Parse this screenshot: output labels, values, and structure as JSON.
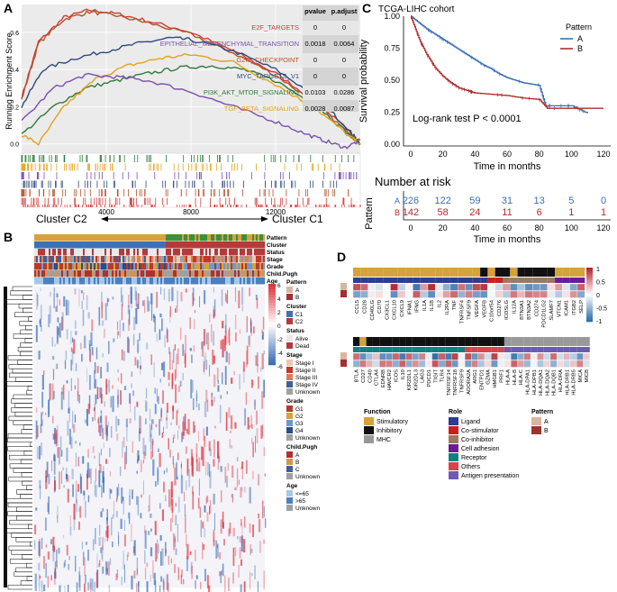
{
  "panels": {
    "a": "A",
    "b": "B",
    "c": "C",
    "d": "D"
  },
  "colors": {
    "e2f": "#d23b3b",
    "emt": "#7b4fb0",
    "g2m": "#b5532a",
    "myc": "#2e4a7a",
    "pi3k": "#2f7a3a",
    "tgfb": "#e3a21a",
    "kmA": "#3a6fb5",
    "kmB": "#b02a2a",
    "heatHigh": "#e0323c",
    "heatLow": "#3a6db5",
    "stim": "#d6a23a",
    "inhib": "#111111",
    "mhc": "#999999"
  },
  "panelA": {
    "ylabel": "Running Enrichment Score",
    "ymin": -0.05,
    "ymax": 0.75,
    "yticks": [
      "0.6",
      "0.4",
      "0.2",
      "0.0"
    ],
    "xticks": [
      "4000",
      "8000",
      "12000"
    ],
    "xmax": 16000,
    "table": {
      "headers": [
        "pvalue",
        "p.adjust"
      ],
      "rows": [
        {
          "name": "E2F_TARGETS",
          "pvalue": "0",
          "padj": "0",
          "color": "e2f"
        },
        {
          "name": "EPITHELIAL_MESENCHYMAL_TRANSITION",
          "pvalue": "0.0018",
          "padj": "0.0064",
          "color": "emt"
        },
        {
          "name": "G2M_CHECKPOINT",
          "pvalue": "0",
          "padj": "0",
          "color": "g2m"
        },
        {
          "name": "MYC_TARGETS_V1",
          "pvalue": "0",
          "padj": "0",
          "color": "myc"
        },
        {
          "name": "PI3K_AKT_MTOR_SIGNALING",
          "pvalue": "0.0103",
          "padj": "0.0286",
          "color": "pi3k"
        },
        {
          "name": "TGF_BETA_SIGNALING",
          "pvalue": "0.0028",
          "padj": "0.0087",
          "color": "tgfb"
        }
      ]
    },
    "series": [
      {
        "key": "e2f",
        "pts": [
          [
            0,
            0.25
          ],
          [
            800,
            0.55
          ],
          [
            2000,
            0.68
          ],
          [
            3200,
            0.72
          ],
          [
            4500,
            0.7
          ],
          [
            6000,
            0.66
          ],
          [
            8000,
            0.6
          ],
          [
            10000,
            0.5
          ],
          [
            12000,
            0.38
          ],
          [
            14000,
            0.22
          ],
          [
            15500,
            0.06
          ],
          [
            16000,
            0.0
          ]
        ]
      },
      {
        "key": "g2m",
        "pts": [
          [
            0,
            0.24
          ],
          [
            800,
            0.54
          ],
          [
            2000,
            0.67
          ],
          [
            3200,
            0.71
          ],
          [
            4500,
            0.69
          ],
          [
            6000,
            0.65
          ],
          [
            8000,
            0.59
          ],
          [
            10000,
            0.49
          ],
          [
            12000,
            0.37
          ],
          [
            14000,
            0.21
          ],
          [
            15500,
            0.05
          ],
          [
            16000,
            0.0
          ]
        ]
      },
      {
        "key": "myc",
        "pts": [
          [
            0,
            0.2
          ],
          [
            1000,
            0.4
          ],
          [
            2500,
            0.46
          ],
          [
            4000,
            0.5
          ],
          [
            5500,
            0.54
          ],
          [
            7000,
            0.57
          ],
          [
            8000,
            0.56
          ],
          [
            10000,
            0.5
          ],
          [
            12000,
            0.4
          ],
          [
            14000,
            0.25
          ],
          [
            15500,
            0.07
          ],
          [
            16000,
            0.0
          ]
        ]
      },
      {
        "key": "pi3k",
        "pts": [
          [
            0,
            0.05
          ],
          [
            1500,
            0.2
          ],
          [
            3000,
            0.3
          ],
          [
            4500,
            0.34
          ],
          [
            6000,
            0.38
          ],
          [
            7500,
            0.41
          ],
          [
            9000,
            0.42
          ],
          [
            10500,
            0.4
          ],
          [
            12000,
            0.34
          ],
          [
            14000,
            0.2
          ],
          [
            15500,
            0.05
          ],
          [
            16000,
            0.0
          ]
        ]
      },
      {
        "key": "tgfb",
        "pts": [
          [
            0,
            0.05
          ],
          [
            800,
            0.0
          ],
          [
            2000,
            0.2
          ],
          [
            3500,
            0.35
          ],
          [
            5000,
            0.42
          ],
          [
            6500,
            0.46
          ],
          [
            8000,
            0.48
          ],
          [
            10000,
            0.44
          ],
          [
            12000,
            0.32
          ],
          [
            14000,
            0.18
          ],
          [
            15500,
            0.04
          ],
          [
            16000,
            0.0
          ]
        ]
      },
      {
        "key": "emt",
        "pts": [
          [
            0,
            0.12
          ],
          [
            1500,
            0.3
          ],
          [
            3000,
            0.37
          ],
          [
            4500,
            0.36
          ],
          [
            6000,
            0.34
          ],
          [
            8000,
            0.28
          ],
          [
            10000,
            0.2
          ],
          [
            12000,
            0.12
          ],
          [
            13500,
            0.05
          ],
          [
            14500,
            0.01
          ],
          [
            15300,
            -0.02
          ],
          [
            16000,
            0.02
          ]
        ]
      }
    ],
    "clusterLeft": "Cluster C2",
    "clusterRight": "Cluster C1"
  },
  "panelB": {
    "trackLabels": [
      "Pattern",
      "Cluster",
      "Status",
      "Stage",
      "Grade",
      "Child.Pugh",
      "Age"
    ],
    "scaleTicks": [
      "6",
      "4",
      "2",
      "0",
      "-2",
      "-4",
      "-6"
    ],
    "legends": [
      {
        "title": "Pattern",
        "items": [
          {
            "label": "A",
            "color": "#d9b6a0"
          },
          {
            "label": "B",
            "color": "#a13030"
          }
        ]
      },
      {
        "title": "Cluster",
        "items": [
          {
            "label": "C1",
            "color": "#3c72b8"
          },
          {
            "label": "C2",
            "color": "#b63a3a"
          }
        ]
      },
      {
        "title": "Status",
        "items": [
          {
            "label": "Alive",
            "color": "#e9e9e9"
          },
          {
            "label": "Dead",
            "color": "#b23a3a"
          }
        ]
      },
      {
        "title": "Stage",
        "items": [
          {
            "label": "Stage I",
            "color": "#f2c6ad"
          },
          {
            "label": "Stage II",
            "color": "#c0392b"
          },
          {
            "label": "Stage III",
            "color": "#d97f55"
          },
          {
            "label": "Stage IV",
            "color": "#3f5f99"
          },
          {
            "label": "Unknown",
            "color": "#a0a0a0"
          }
        ]
      },
      {
        "title": "Grade",
        "items": [
          {
            "label": "G1",
            "color": "#b83a2e"
          },
          {
            "label": "G2",
            "color": "#d6a23a"
          },
          {
            "label": "G3",
            "color": "#6a9ad0"
          },
          {
            "label": "G4",
            "color": "#2b4c86"
          },
          {
            "label": "Unknown",
            "color": "#a0a0a0"
          }
        ]
      },
      {
        "title": "Child.Pugh",
        "items": [
          {
            "label": "A",
            "color": "#b03030"
          },
          {
            "label": "B",
            "color": "#d4944b"
          },
          {
            "label": "C",
            "color": "#3f5f99"
          },
          {
            "label": "Unknown",
            "color": "#a0a0a0"
          }
        ]
      },
      {
        "title": "Age",
        "items": [
          {
            "label": "<=65",
            "color": "#a6c8e6"
          },
          {
            "label": ">65",
            "color": "#4c7fbf"
          },
          {
            "label": "Unknown",
            "color": "#a0a0a0"
          }
        ]
      }
    ]
  },
  "panelC": {
    "title": "TCGA-LIHC cohort",
    "ylabel": "Survival probability",
    "xlabel": "Time in months",
    "yticks": [
      "1.00",
      "0.75",
      "0.50",
      "0.25",
      "0.00"
    ],
    "xticks": [
      "0",
      "20",
      "40",
      "60",
      "80",
      "100",
      "120"
    ],
    "legendTitle": "Pattern",
    "legend": [
      {
        "label": "A",
        "color": "kmA"
      },
      {
        "label": "B",
        "color": "kmB"
      }
    ],
    "pvalue": "Log-rank test P < 0.0001",
    "curveA": [
      [
        0,
        1.0
      ],
      [
        5,
        0.95
      ],
      [
        10,
        0.9
      ],
      [
        15,
        0.86
      ],
      [
        20,
        0.82
      ],
      [
        25,
        0.78
      ],
      [
        30,
        0.74
      ],
      [
        35,
        0.7
      ],
      [
        40,
        0.66
      ],
      [
        45,
        0.62
      ],
      [
        50,
        0.59
      ],
      [
        55,
        0.55
      ],
      [
        60,
        0.52
      ],
      [
        65,
        0.5
      ],
      [
        70,
        0.48
      ],
      [
        75,
        0.47
      ],
      [
        80,
        0.46
      ],
      [
        84,
        0.3
      ],
      [
        90,
        0.3
      ],
      [
        100,
        0.3
      ],
      [
        110,
        0.24
      ]
    ],
    "curveB": [
      [
        0,
        1.0
      ],
      [
        3,
        0.9
      ],
      [
        6,
        0.8
      ],
      [
        10,
        0.7
      ],
      [
        15,
        0.6
      ],
      [
        20,
        0.53
      ],
      [
        25,
        0.48
      ],
      [
        30,
        0.44
      ],
      [
        35,
        0.42
      ],
      [
        40,
        0.4
      ],
      [
        50,
        0.39
      ],
      [
        60,
        0.38
      ],
      [
        70,
        0.36
      ],
      [
        80,
        0.35
      ],
      [
        85,
        0.28
      ],
      [
        100,
        0.28
      ],
      [
        120,
        0.28
      ]
    ],
    "riskTitle": "Number at risk",
    "riskYlabel": "Pattern",
    "riskA": [
      "226",
      "122",
      "59",
      "31",
      "13",
      "5",
      "0"
    ],
    "riskB": [
      "142",
      "58",
      "24",
      "11",
      "6",
      "1",
      "1"
    ],
    "riskLabels": [
      "A",
      "B"
    ]
  },
  "panelD": {
    "scaleTicks": [
      "1",
      "0.5",
      "0",
      "-0.5",
      "-1"
    ],
    "genes1": [
      "CCL5",
      "CD28",
      "CD40LG",
      "CD70",
      "CX3CL1",
      "CXCL10",
      "CXCL9",
      "IFNA1",
      "IFNG",
      "IL1A",
      "IL1B",
      "IL2",
      "IL2RA",
      "TNF",
      "TNFRSF4",
      "TNFSF9",
      "VEGFA",
      "VEGFB",
      "C10orf54",
      "CD276",
      "ICOSLG",
      "IL12A",
      "BTN3A1",
      "BTN3A2",
      "CD274",
      "PDCD1LG2",
      "SLAMF7",
      "VTCN1",
      "ICAM1",
      "ITGB2",
      "SELP"
    ],
    "genes2": [
      "BTLA",
      "CD27",
      "CD40",
      "CTLA4",
      "EDNRB",
      "HAVCR2",
      "ICOS",
      "IL10",
      "KIR2DL1",
      "KIR2DL3",
      "LAG3",
      "PDCD1",
      "TIGIT",
      "TLR4",
      "TNFRSF14",
      "TNFRSF18",
      "TNFRSF9",
      "ADORA2A",
      "ARG1",
      "ENTPD1",
      "GZMA",
      "HMGB1",
      "PRF1",
      "HLA-A",
      "HLA-B",
      "HLA-C",
      "HLA-DPA1",
      "HLA-DPB1",
      "HLA-DQA1",
      "HLA-DQA2",
      "HLA-DQB1",
      "HLA-DRA",
      "HLA-DRB1",
      "HLA-DRB5",
      "MICA",
      "MICB"
    ],
    "legendFunction": {
      "title": "Function",
      "items": [
        {
          "label": "Stimulatory",
          "color": "#d6a23a"
        },
        {
          "label": "Inhibitory",
          "color": "#111111"
        },
        {
          "label": "MHC",
          "color": "#999999"
        }
      ]
    },
    "legendRole": {
      "title": "Role",
      "items": [
        {
          "label": "Ligand",
          "color": "#2c3e8f"
        },
        {
          "label": "Co-stimulator",
          "color": "#cc1f1f"
        },
        {
          "label": "Co-inhibitor",
          "color": "#9a7a5e"
        },
        {
          "label": "Cell adhesion",
          "color": "#6a1b9a"
        },
        {
          "label": "Receptor",
          "color": "#138080"
        },
        {
          "label": "Others",
          "color": "#d6454a"
        },
        {
          "label": "Antigen presentation",
          "color": "#6c5bb5"
        }
      ]
    },
    "legendPattern": {
      "title": "Pattern",
      "items": [
        {
          "label": "A",
          "color": "#d9b6a0"
        },
        {
          "label": "B",
          "color": "#a13030"
        }
      ]
    }
  }
}
